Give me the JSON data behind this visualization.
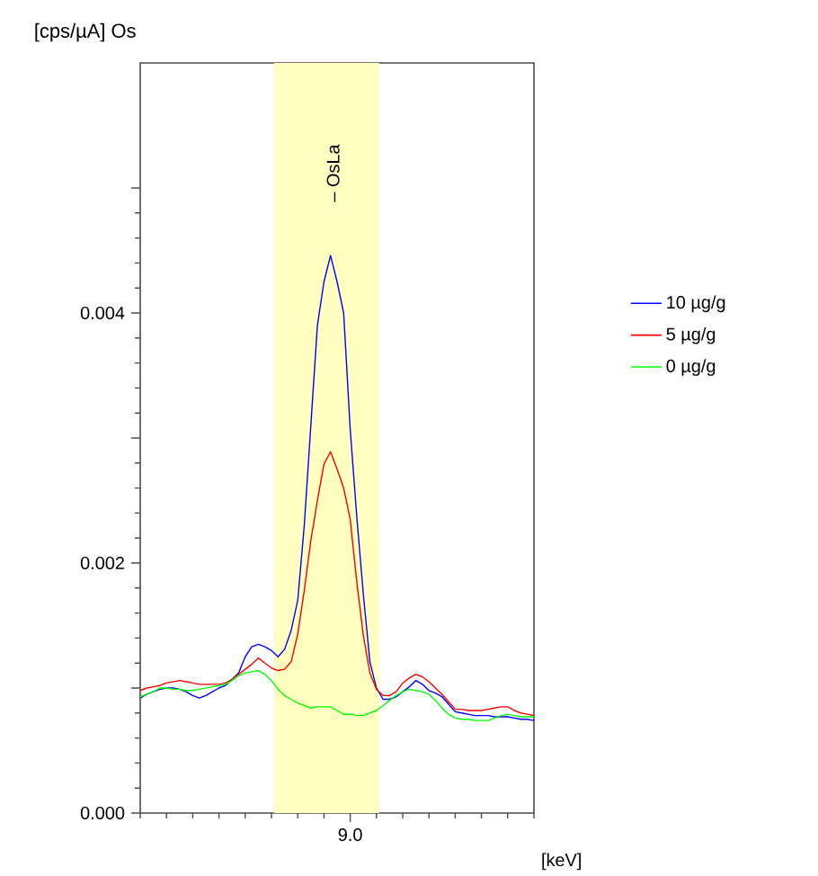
{
  "chart_data": {
    "type": "line",
    "xlabel": "[keV]",
    "ylabel": "[cps/µA] Os",
    "categories": [
      null,
      null,
      null,
      null,
      null,
      null,
      null,
      null,
      null,
      null,
      null,
      null,
      null,
      null,
      null,
      null,
      null,
      null,
      null,
      null,
      null,
      null,
      null,
      null,
      null,
      null,
      null,
      null,
      null,
      null,
      null,
      null,
      "9.0",
      null,
      null,
      null,
      null,
      null,
      null,
      null,
      null,
      null,
      null,
      null,
      null,
      null,
      null,
      null,
      null,
      null,
      null,
      null,
      null,
      null,
      null,
      null,
      null,
      null,
      null,
      null,
      null
    ],
    "ylim": [
      0,
      0.006
    ],
    "yticks": [
      {
        "value": 0,
        "label": "0.000"
      },
      {
        "value": 0.001,
        "label": null
      },
      {
        "value": 0.002,
        "label": "0.002"
      },
      {
        "value": 0.003,
        "label": null
      },
      {
        "value": 0.004,
        "label": "0.004"
      },
      {
        "value": 0.005,
        "label": null
      }
    ],
    "annotations": [
      "– OsLa"
    ],
    "legend": "right",
    "marker": "none",
    "line_style": "solid",
    "series": [
      {
        "name": "10 µg/g",
        "color": "#0000ff",
        "values": [
          0.00092,
          0.00095,
          0.00097,
          0.00099,
          0.001,
          0.001,
          0.00099,
          0.00097,
          0.00094,
          0.00092,
          0.00094,
          0.00097,
          0.001,
          0.00102,
          0.00107,
          0.00112,
          0.00125,
          0.00133,
          0.00135,
          0.00133,
          0.0013,
          0.00125,
          0.00131,
          0.00146,
          0.0017,
          0.0023,
          0.0031,
          0.0039,
          0.00425,
          0.00446,
          0.00425,
          0.004,
          0.00307,
          0.00237,
          0.00175,
          0.00121,
          0.001,
          0.00091,
          0.00091,
          0.00093,
          0.00097,
          0.00101,
          0.00106,
          0.00103,
          0.00098,
          0.00096,
          0.00093,
          0.00087,
          0.00081,
          0.0008,
          0.00079,
          0.00078,
          0.00078,
          0.00078,
          0.00077,
          0.00077,
          0.00077,
          0.00076,
          0.00075,
          0.00075,
          0.00074
        ]
      },
      {
        "name": "5 µg/g",
        "color": "#ff0000",
        "values": [
          0.00098,
          0.001,
          0.00101,
          0.00102,
          0.00104,
          0.00105,
          0.00106,
          0.00105,
          0.00104,
          0.00103,
          0.00103,
          0.00103,
          0.00103,
          0.00104,
          0.00107,
          0.00111,
          0.00115,
          0.00119,
          0.00124,
          0.0012,
          0.00116,
          0.00114,
          0.00115,
          0.00121,
          0.00143,
          0.00178,
          0.00218,
          0.0025,
          0.00279,
          0.00289,
          0.00275,
          0.0026,
          0.00235,
          0.00185,
          0.00142,
          0.00112,
          0.00099,
          0.00094,
          0.00094,
          0.00097,
          0.00104,
          0.00108,
          0.00111,
          0.00109,
          0.00105,
          0.001,
          0.00095,
          0.00089,
          0.00083,
          0.00083,
          0.00082,
          0.00082,
          0.00082,
          0.00083,
          0.00084,
          0.00085,
          0.00085,
          0.00082,
          0.0008,
          0.00079,
          0.00078
        ]
      },
      {
        "name": "0 µg/g",
        "color": "#00ff00",
        "values": [
          0.00093,
          0.00095,
          0.00097,
          0.001,
          0.001,
          0.00099,
          0.00099,
          0.00098,
          0.00098,
          0.00099,
          0.001,
          0.00101,
          0.00102,
          0.00103,
          0.00106,
          0.0011,
          0.00112,
          0.00113,
          0.00114,
          0.00111,
          0.00106,
          0.00099,
          0.00094,
          0.00091,
          0.00088,
          0.00086,
          0.00084,
          0.00085,
          0.00085,
          0.00085,
          0.00082,
          0.00079,
          0.00079,
          0.00078,
          0.00078,
          0.0008,
          0.00082,
          0.00086,
          0.0009,
          0.00094,
          0.00097,
          0.00099,
          0.00098,
          0.00097,
          0.00095,
          0.0009,
          0.00084,
          0.00079,
          0.00076,
          0.00075,
          0.00075,
          0.00074,
          0.00074,
          0.00074,
          0.00076,
          0.00078,
          0.00079,
          0.00078,
          0.00077,
          0.00077,
          0.00077
        ]
      }
    ]
  }
}
